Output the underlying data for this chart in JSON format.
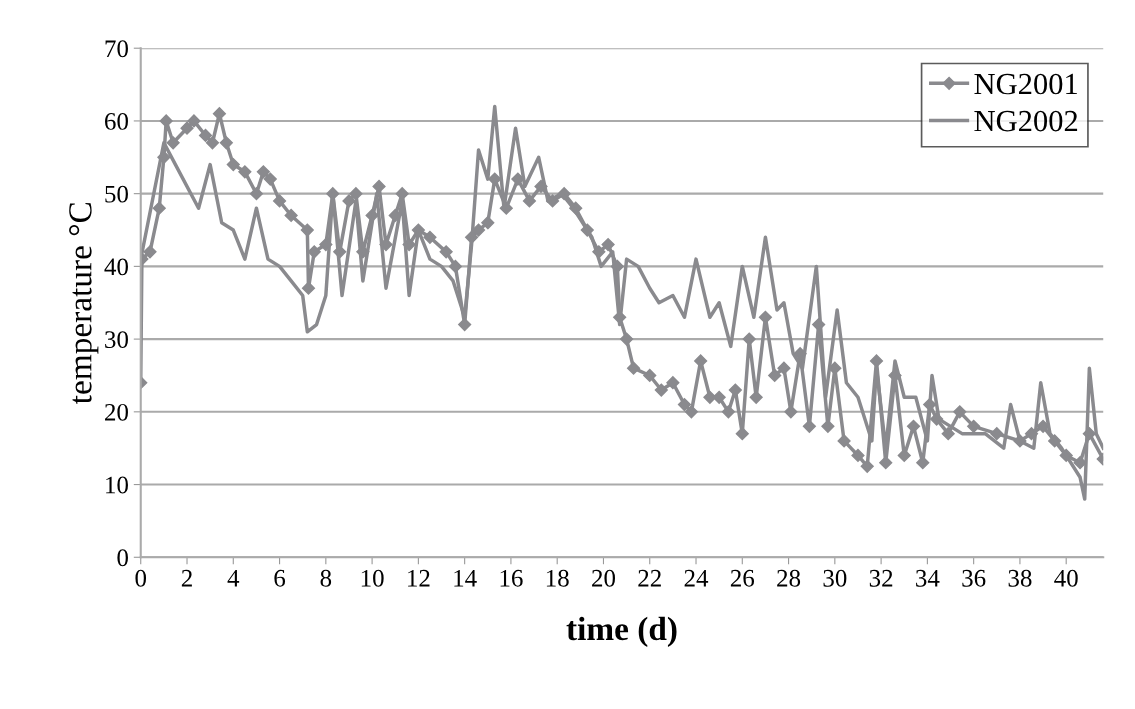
{
  "chart_data": {
    "type": "line",
    "xlabel": "time (d)",
    "ylabel": "temperature °C",
    "xlim": [
      0,
      41.6
    ],
    "ylim": [
      0,
      70
    ],
    "xticks": [
      0,
      2,
      4,
      6,
      8,
      10,
      12,
      14,
      16,
      18,
      20,
      22,
      24,
      26,
      28,
      30,
      32,
      34,
      36,
      38,
      40
    ],
    "yticks": [
      0,
      10,
      20,
      30,
      40,
      50,
      60,
      70
    ],
    "grid": "y",
    "legend": "top right",
    "series": [
      {
        "name": "NG2001",
        "color": "#8a8a8e",
        "marker": "diamond",
        "x": [
          0,
          0.05,
          0.4,
          0.8,
          1.0,
          1.1,
          1.4,
          2.0,
          2.3,
          2.8,
          3.1,
          3.4,
          3.7,
          4.0,
          4.5,
          5.0,
          5.3,
          5.6,
          6.0,
          6.5,
          7.2,
          7.25,
          7.5,
          8.0,
          8.3,
          8.6,
          9.0,
          9.3,
          9.6,
          10.0,
          10.3,
          10.6,
          11.0,
          11.3,
          11.6,
          12.0,
          12.5,
          13.2,
          13.6,
          14.0,
          14.3,
          14.6,
          15.0,
          15.3,
          15.8,
          16.3,
          16.8,
          17.3,
          17.8,
          18.3,
          18.8,
          19.3,
          19.8,
          20.2,
          20.6,
          20.7,
          21.0,
          21.3,
          22.0,
          22.5,
          23.0,
          23.5,
          23.8,
          24.2,
          24.6,
          25.0,
          25.4,
          25.7,
          26.0,
          26.3,
          26.6,
          27.0,
          27.4,
          27.8,
          28.1,
          28.5,
          28.9,
          29.3,
          29.7,
          30.0,
          30.4,
          31.0,
          31.4,
          31.8,
          32.2,
          32.6,
          33.0,
          33.4,
          33.8,
          34.1,
          34.4,
          34.9,
          35.4,
          36.0,
          37.0,
          38.0,
          38.5,
          39.0,
          39.5,
          40.0,
          40.6,
          41.0,
          41.6
        ],
        "values": [
          24,
          41,
          42,
          48,
          55,
          60,
          57,
          59,
          60,
          58,
          57,
          61,
          57,
          54,
          53,
          50,
          53,
          52,
          49,
          47,
          45,
          37,
          42,
          43,
          50,
          42,
          49,
          50,
          42,
          47,
          51,
          43,
          47,
          50,
          43,
          45,
          44,
          42,
          40,
          32,
          44,
          45,
          46,
          52,
          48,
          52,
          49,
          51,
          49,
          50,
          48,
          45,
          42,
          43,
          40,
          33,
          30,
          26,
          25,
          23,
          24,
          21,
          20,
          27,
          22,
          22,
          20,
          23,
          17,
          30,
          22,
          33,
          25,
          26,
          20,
          28,
          18,
          32,
          18,
          26,
          16,
          14,
          12.5,
          27,
          13,
          25,
          14,
          18,
          13,
          21,
          19,
          17,
          20,
          18,
          17,
          16,
          17,
          18,
          16,
          14,
          13,
          17,
          13.5
        ]
      },
      {
        "name": "NG2002",
        "color": "#8a8a8e",
        "marker": "none",
        "x": [
          0,
          1.0,
          1.5,
          2.5,
          3.0,
          3.5,
          4.0,
          4.5,
          5.0,
          5.5,
          6.0,
          6.5,
          7.0,
          7.2,
          7.6,
          8.0,
          8.3,
          8.7,
          9.3,
          9.6,
          10.2,
          10.6,
          11.3,
          11.6,
          12.0,
          12.5,
          13.0,
          13.5,
          14.0,
          14.3,
          14.6,
          15.0,
          15.3,
          15.7,
          16.2,
          16.6,
          17.2,
          17.6,
          18.2,
          18.7,
          19.5,
          19.9,
          20.4,
          20.7,
          21.0,
          21.5,
          22.0,
          22.4,
          23.0,
          23.5,
          24.0,
          24.6,
          25.0,
          25.5,
          26.0,
          26.5,
          27.0,
          27.5,
          27.8,
          28.2,
          28.6,
          29.2,
          29.6,
          30.1,
          30.5,
          31.0,
          31.6,
          31.8,
          32.2,
          32.6,
          33.0,
          33.5,
          34.0,
          34.2,
          34.5,
          35.0,
          35.5,
          36.5,
          37.3,
          37.6,
          38.0,
          38.6,
          38.9,
          39.3,
          39.8,
          40.6,
          40.8,
          41.0,
          41.3,
          41.6
        ],
        "values": [
          41,
          57,
          54,
          48,
          54,
          46,
          45,
          41,
          48,
          41,
          40,
          38,
          36,
          31,
          32,
          36,
          50,
          36,
          49,
          38,
          50,
          37,
          49,
          36,
          45,
          41,
          40,
          38,
          33,
          43,
          56,
          52,
          62,
          48,
          59,
          51,
          55,
          49,
          50,
          48,
          44,
          40,
          42,
          32,
          41,
          40,
          37,
          35,
          36,
          33,
          41,
          33,
          35,
          29,
          40,
          33,
          44,
          34,
          35,
          28,
          26,
          40,
          22,
          34,
          24,
          22,
          16,
          26,
          15,
          27,
          22,
          22,
          16,
          25,
          19,
          18,
          17,
          17,
          15,
          21,
          16,
          15,
          24,
          17,
          15,
          11,
          8,
          26,
          17,
          15
        ]
      }
    ]
  }
}
